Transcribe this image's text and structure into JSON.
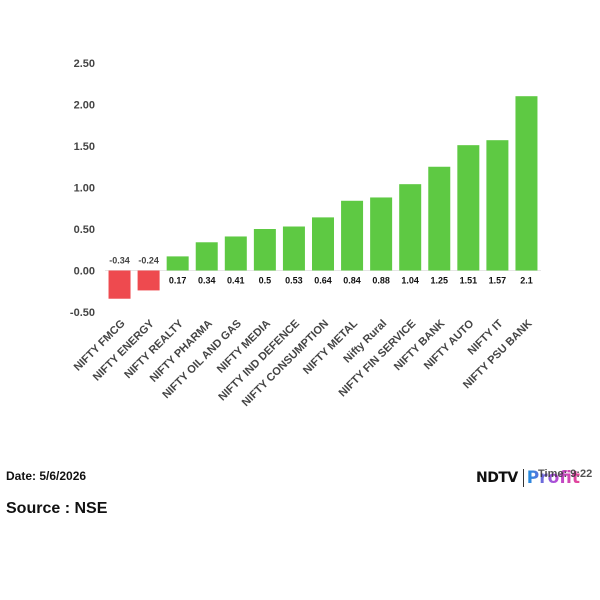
{
  "chart_data": {
    "type": "bar",
    "categories": [
      "NIFTY FMCG",
      "NIFTY ENERGY",
      "NIFTY REALTY",
      "NIFTY PHARMA",
      "NIFTY OIL AND GAS",
      "NIFTY MEDIA",
      "NIFTY IND DEFENCE",
      "NIFTY CONSUMPTION",
      "NIFTY METAL",
      "Nifty Rural",
      "NIFTY FIN SERVICE",
      "NIFTY BANK",
      "NIFTY AUTO",
      "NIFTY IT",
      "NIFTY PSU BANK"
    ],
    "values": [
      -0.34,
      -0.24,
      0.17,
      0.34,
      0.41,
      0.5,
      0.53,
      0.64,
      0.84,
      0.88,
      1.04,
      1.25,
      1.51,
      1.57,
      2.1
    ],
    "data_labels": [
      "-0.34",
      "-0.24",
      "0.17",
      "0.34",
      "0.41",
      "0.5",
      "0.53",
      "0.64",
      "0.84",
      "0.88",
      "1.04",
      "1.25",
      "1.51",
      "1.57",
      "2.1"
    ],
    "yticks": [
      "2.50",
      "2.00",
      "1.50",
      "1.00",
      "0.50",
      "0.00",
      "-0.50"
    ],
    "ylim": [
      -0.5,
      2.5
    ],
    "grid": false,
    "colors": {
      "positive": "#5ec943",
      "negative": "#ee4a4f",
      "axis_text": "#444444",
      "label_text": "#111111"
    }
  },
  "footer": {
    "date": "Date: 5/6/2026",
    "source": "Source : NSE",
    "brand_ndtv": "NDTV",
    "brand_profit": "Profit",
    "time": "Time: 9:22"
  }
}
